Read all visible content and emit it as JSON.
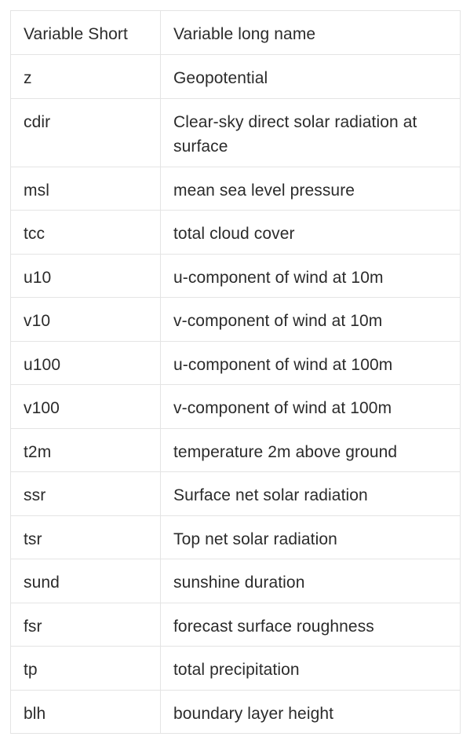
{
  "table": {
    "headers": [
      "Variable Short",
      "Variable long name"
    ],
    "rows": [
      [
        "z",
        "Geopotential"
      ],
      [
        "cdir",
        "Clear-sky direct solar radiation at surface"
      ],
      [
        "msl",
        "mean sea level pressure"
      ],
      [
        "tcc",
        "total cloud cover"
      ],
      [
        "u10",
        "u-component of wind at 10m"
      ],
      [
        "v10",
        "v-component of wind at 10m"
      ],
      [
        "u100",
        "u-component of wind at 100m"
      ],
      [
        "v100",
        "v-component of wind at 100m"
      ],
      [
        "t2m",
        "temperature 2m above ground"
      ],
      [
        "ssr",
        "Surface net solar radiation"
      ],
      [
        "tsr",
        "Top net solar radiation"
      ],
      [
        "sund",
        "sunshine duration"
      ],
      [
        "fsr",
        "forecast surface roughness"
      ],
      [
        "tp",
        "total precipitation"
      ],
      [
        "blh",
        "boundary layer height"
      ]
    ]
  }
}
